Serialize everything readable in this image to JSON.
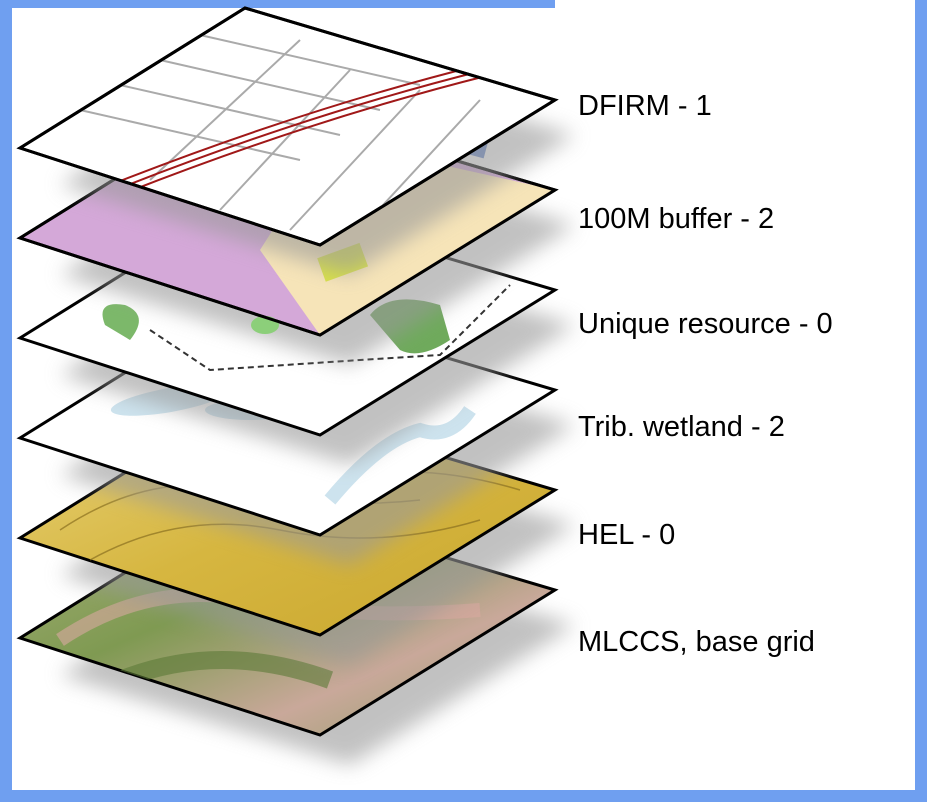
{
  "layers": [
    {
      "label": "DFIRM - 1"
    },
    {
      "label": "100M buffer - 2"
    },
    {
      "label": "Unique resource - 0"
    },
    {
      "label": "Trib. wetland - 2"
    },
    {
      "label": "HEL - 0"
    },
    {
      "label": "MLCCS, base grid"
    }
  ]
}
